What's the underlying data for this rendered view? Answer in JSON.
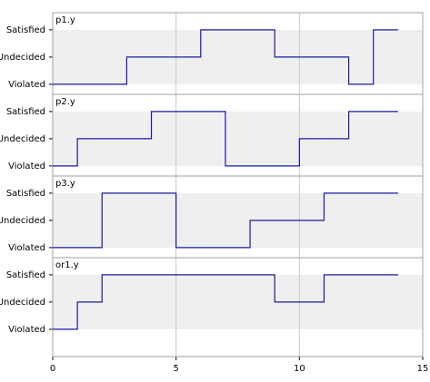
{
  "chart_data": [
    {
      "type": "step",
      "title": "p1.y",
      "color": "#1a1aa0",
      "x": [
        0,
        3,
        6,
        9,
        12,
        13,
        14
      ],
      "values": [
        0,
        1,
        2,
        1,
        0,
        2,
        2
      ],
      "xlim": [
        0,
        15
      ],
      "ylim": [
        -0.37,
        2.63
      ],
      "yticks": [
        {
          "value": 0,
          "label": "Violated"
        },
        {
          "value": 1,
          "label": "Undecided"
        },
        {
          "value": 2,
          "label": "Satisfied"
        }
      ]
    },
    {
      "type": "step",
      "title": "p2.y",
      "color": "#1a1aa0",
      "x": [
        0,
        1,
        4,
        7,
        10,
        12,
        14
      ],
      "values": [
        0,
        1,
        2,
        0,
        1,
        2,
        2
      ],
      "xlim": [
        0,
        15
      ],
      "ylim": [
        -0.37,
        2.63
      ],
      "yticks": [
        {
          "value": 0,
          "label": "Violated"
        },
        {
          "value": 1,
          "label": "Undecided"
        },
        {
          "value": 2,
          "label": "Satisfied"
        }
      ]
    },
    {
      "type": "step",
      "title": "p3.y",
      "color": "#1a1aa0",
      "x": [
        0,
        2,
        5,
        8,
        11,
        14
      ],
      "values": [
        0,
        2,
        0,
        1,
        2,
        2
      ],
      "xlim": [
        0,
        15
      ],
      "ylim": [
        -0.37,
        2.63
      ],
      "yticks": [
        {
          "value": 0,
          "label": "Violated"
        },
        {
          "value": 1,
          "label": "Undecided"
        },
        {
          "value": 2,
          "label": "Satisfied"
        }
      ]
    },
    {
      "type": "step",
      "title": "or1.y",
      "color": "#1a1aa0",
      "x": [
        0,
        1,
        2,
        9,
        11,
        14
      ],
      "values": [
        0,
        1,
        2,
        1,
        2,
        2
      ],
      "xlim": [
        0,
        15
      ],
      "ylim": [
        -1.0,
        2.63
      ],
      "xticks": [
        0,
        5,
        10,
        15
      ],
      "yticks": [
        {
          "value": 0,
          "label": "Violated"
        },
        {
          "value": 1,
          "label": "Undecided"
        },
        {
          "value": 2,
          "label": "Satisfied"
        }
      ]
    }
  ]
}
